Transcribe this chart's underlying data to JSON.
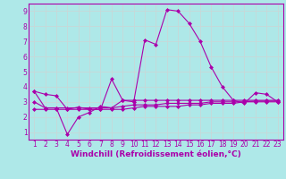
{
  "title": "",
  "xlabel": "Windchill (Refroidissement éolien,°C)",
  "xlabel_color": "#aa00aa",
  "background_color": "#aee8e8",
  "grid_color": "#c8d8d8",
  "line_color": "#aa00aa",
  "x": [
    1,
    2,
    3,
    4,
    5,
    6,
    7,
    8,
    9,
    10,
    11,
    12,
    13,
    14,
    15,
    16,
    17,
    18,
    19,
    20,
    21,
    22,
    23
  ],
  "line1": [
    3.7,
    3.5,
    3.4,
    2.5,
    2.65,
    2.5,
    2.5,
    4.5,
    3.1,
    3.0,
    7.1,
    6.8,
    9.1,
    9.0,
    8.2,
    7.0,
    5.3,
    4.0,
    3.1,
    2.9,
    3.6,
    3.5,
    3.0
  ],
  "line2": [
    3.7,
    2.6,
    2.6,
    0.85,
    2.0,
    2.3,
    2.7,
    2.6,
    3.1,
    3.1,
    3.1,
    3.1,
    3.1,
    3.1,
    3.1,
    3.1,
    3.1,
    3.1,
    3.1,
    3.1,
    3.1,
    3.1,
    3.1
  ],
  "line3": [
    3.0,
    2.6,
    2.6,
    2.6,
    2.6,
    2.6,
    2.6,
    2.6,
    2.7,
    2.8,
    2.8,
    2.8,
    2.9,
    2.9,
    2.9,
    2.9,
    3.0,
    3.0,
    3.0,
    3.0,
    3.05,
    3.05,
    3.05
  ],
  "line4": [
    2.5,
    2.5,
    2.5,
    2.5,
    2.5,
    2.5,
    2.5,
    2.5,
    2.5,
    2.6,
    2.7,
    2.7,
    2.7,
    2.7,
    2.8,
    2.8,
    2.9,
    2.9,
    2.9,
    3.0,
    3.0,
    3.0,
    3.0
  ],
  "ylim": [
    0.5,
    9.5
  ],
  "xlim": [
    0.5,
    23.5
  ],
  "yticks": [
    1,
    2,
    3,
    4,
    5,
    6,
    7,
    8,
    9
  ],
  "xticks": [
    1,
    2,
    3,
    4,
    5,
    6,
    7,
    8,
    9,
    10,
    11,
    12,
    13,
    14,
    15,
    16,
    17,
    18,
    19,
    20,
    21,
    22,
    23
  ],
  "marker": "D",
  "markersize": 2.0,
  "linewidth": 0.8,
  "tick_fontsize": 5.5,
  "xlabel_fontsize": 6.5,
  "figsize": [
    3.2,
    2.0
  ],
  "dpi": 100
}
